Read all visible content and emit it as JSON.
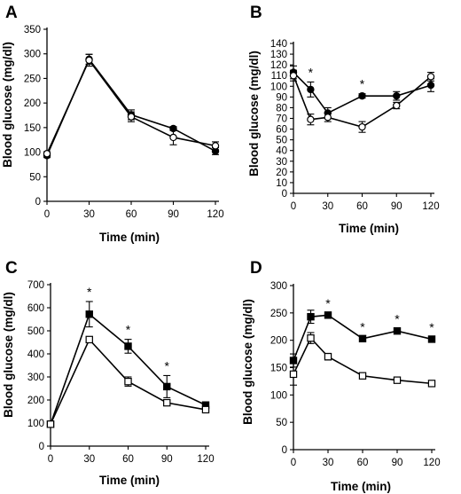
{
  "chart_data": [
    {
      "panel": "A",
      "type": "line",
      "xlabel": "Time (min)",
      "ylabel": "Blood glucose (mg/dl)",
      "xlim": [
        0,
        120
      ],
      "ylim": [
        0,
        350
      ],
      "xticks": [
        0,
        30,
        60,
        90,
        120
      ],
      "yticks": [
        0,
        50,
        100,
        150,
        200,
        250,
        300,
        350
      ],
      "x": [
        0,
        30,
        60,
        90,
        120
      ],
      "series": [
        {
          "marker": "filled-circle",
          "values": [
            93,
            289,
            176,
            148,
            102
          ],
          "errors": [
            4,
            10,
            10,
            4,
            7
          ]
        },
        {
          "marker": "open-circle",
          "values": [
            97,
            287,
            172,
            130,
            113
          ],
          "errors": [
            4,
            12,
            10,
            15,
            8
          ]
        }
      ],
      "significance": []
    },
    {
      "panel": "B",
      "type": "line",
      "xlabel": "Time (min)",
      "ylabel": "Blood glucose (mg/dl)",
      "xlim": [
        0,
        120
      ],
      "ylim": [
        0,
        140
      ],
      "xticks": [
        0,
        30,
        60,
        90,
        120
      ],
      "yticks": [
        0,
        10,
        20,
        30,
        40,
        50,
        60,
        70,
        80,
        90,
        100,
        110,
        120,
        130,
        140
      ],
      "x": [
        0,
        15,
        30,
        60,
        90,
        120
      ],
      "series": [
        {
          "marker": "filled-circle",
          "values": [
            113,
            97,
            75,
            91,
            91,
            101
          ],
          "errors": [
            6,
            7,
            5,
            2,
            4,
            6
          ]
        },
        {
          "marker": "open-circle",
          "values": [
            110,
            69,
            71,
            62,
            82,
            109
          ],
          "errors": [
            5,
            5,
            4,
            5,
            3,
            4
          ]
        }
      ],
      "significance": [
        {
          "x": 15,
          "label": "*"
        },
        {
          "x": 60,
          "label": "*"
        }
      ]
    },
    {
      "panel": "C",
      "type": "line",
      "xlabel": "Time (min)",
      "ylabel": "Blood glucose (mg/dl)",
      "xlim": [
        0,
        120
      ],
      "ylim": [
        0,
        700
      ],
      "xticks": [
        0,
        30,
        60,
        90,
        120
      ],
      "yticks": [
        0,
        100,
        200,
        300,
        400,
        500,
        600,
        700
      ],
      "x": [
        0,
        30,
        60,
        90,
        120
      ],
      "series": [
        {
          "marker": "filled-square",
          "values": [
            95,
            572,
            433,
            258,
            178
          ],
          "errors": [
            5,
            55,
            30,
            48,
            8
          ]
        },
        {
          "marker": "open-square",
          "values": [
            95,
            462,
            280,
            188,
            158
          ],
          "errors": [
            5,
            10,
            20,
            12,
            8
          ]
        }
      ],
      "significance": [
        {
          "x": 30,
          "label": "*"
        },
        {
          "x": 60,
          "label": "*"
        },
        {
          "x": 90,
          "label": "*"
        }
      ]
    },
    {
      "panel": "D",
      "type": "line",
      "xlabel": "Time (min)",
      "ylabel": "Blood glucose (mg/dl)",
      "xlim": [
        0,
        120
      ],
      "ylim": [
        0,
        300
      ],
      "xticks": [
        0,
        30,
        60,
        90,
        120
      ],
      "yticks": [
        0,
        50,
        100,
        150,
        200,
        250,
        300
      ],
      "x": [
        0,
        15,
        30,
        60,
        90,
        120
      ],
      "series": [
        {
          "marker": "filled-square",
          "values": [
            163,
            243,
            246,
            203,
            217,
            202
          ],
          "errors": [
            12,
            12,
            4,
            4,
            4,
            4
          ]
        },
        {
          "marker": "open-square",
          "values": [
            138,
            204,
            170,
            135,
            127,
            121
          ],
          "errors": [
            20,
            10,
            6,
            3,
            3,
            5
          ]
        }
      ],
      "significance": [
        {
          "x": 30,
          "label": "*"
        },
        {
          "x": 60,
          "label": "*"
        },
        {
          "x": 90,
          "label": "*"
        },
        {
          "x": 120,
          "label": "*"
        }
      ]
    }
  ]
}
